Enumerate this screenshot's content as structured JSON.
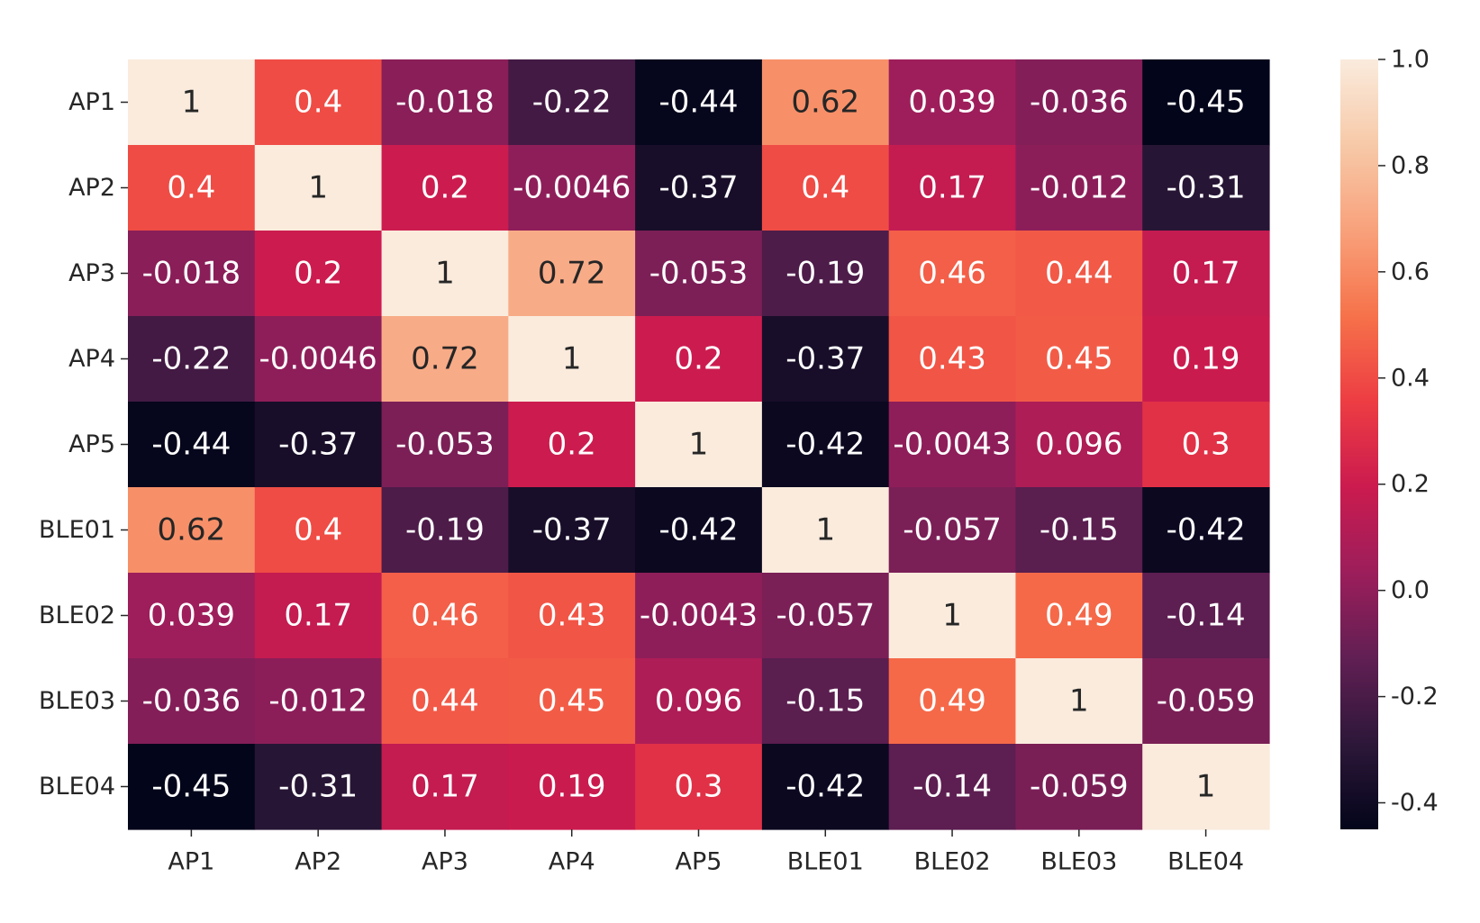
{
  "chart_data": {
    "type": "heatmap",
    "title": "",
    "xlabel": "",
    "ylabel": "",
    "x_labels": [
      "AP1",
      "AP2",
      "AP3",
      "AP4",
      "AP5",
      "BLE01",
      "BLE02",
      "BLE03",
      "BLE04"
    ],
    "y_labels": [
      "AP1",
      "AP2",
      "AP3",
      "AP4",
      "AP5",
      "BLE01",
      "BLE02",
      "BLE03",
      "BLE04"
    ],
    "values": [
      [
        1,
        0.4,
        -0.018,
        -0.22,
        -0.44,
        0.62,
        0.039,
        -0.036,
        -0.45
      ],
      [
        0.4,
        1,
        0.2,
        -0.0046,
        -0.37,
        0.4,
        0.17,
        -0.012,
        -0.31
      ],
      [
        -0.018,
        0.2,
        1,
        0.72,
        -0.053,
        -0.19,
        0.46,
        0.44,
        0.17
      ],
      [
        -0.22,
        -0.0046,
        0.72,
        1,
        0.2,
        -0.37,
        0.43,
        0.45,
        0.19
      ],
      [
        -0.44,
        -0.37,
        -0.053,
        0.2,
        1,
        -0.42,
        -0.0043,
        0.096,
        0.3
      ],
      [
        0.62,
        0.4,
        -0.19,
        -0.37,
        -0.42,
        1,
        -0.057,
        -0.15,
        -0.42
      ],
      [
        0.039,
        0.17,
        0.46,
        0.43,
        -0.0043,
        -0.057,
        1,
        0.49,
        -0.14
      ],
      [
        -0.036,
        -0.012,
        0.44,
        0.45,
        0.096,
        -0.15,
        0.49,
        1,
        -0.059
      ],
      [
        -0.45,
        -0.31,
        0.17,
        0.19,
        0.3,
        -0.42,
        -0.14,
        -0.059,
        1
      ]
    ],
    "annotations": [
      [
        "1",
        "0.4",
        "-0.018",
        "-0.22",
        "-0.44",
        "0.62",
        "0.039",
        "-0.036",
        "-0.45"
      ],
      [
        "0.4",
        "1",
        "0.2",
        "-0.0046",
        "-0.37",
        "0.4",
        "0.17",
        "-0.012",
        "-0.31"
      ],
      [
        "-0.018",
        "0.2",
        "1",
        "0.72",
        "-0.053",
        "-0.19",
        "0.46",
        "0.44",
        "0.17"
      ],
      [
        "-0.22",
        "-0.0046",
        "0.72",
        "1",
        "0.2",
        "-0.37",
        "0.43",
        "0.45",
        "0.19"
      ],
      [
        "-0.44",
        "-0.37",
        "-0.053",
        "0.2",
        "1",
        "-0.42",
        "-0.0043",
        "0.096",
        "0.3"
      ],
      [
        "0.62",
        "0.4",
        "-0.19",
        "-0.37",
        "-0.42",
        "1",
        "-0.057",
        "-0.15",
        "-0.42"
      ],
      [
        "0.039",
        "0.17",
        "0.46",
        "0.43",
        "-0.0043",
        "-0.057",
        "1",
        "0.49",
        "-0.14"
      ],
      [
        "-0.036",
        "-0.012",
        "0.44",
        "0.45",
        "0.096",
        "-0.15",
        "0.49",
        "1",
        "-0.059"
      ],
      [
        "-0.45",
        "-0.31",
        "0.17",
        "0.19",
        "0.3",
        "-0.42",
        "-0.14",
        "-0.059",
        "1"
      ]
    ],
    "colorbar": {
      "vmin": -0.45,
      "vmax": 1.0,
      "ticks": [
        -0.4,
        -0.2,
        0.0,
        0.2,
        0.4,
        0.6,
        0.8,
        1.0
      ],
      "tick_labels": [
        "-0.4",
        "-0.2",
        "0.0",
        "0.2",
        "0.4",
        "0.6",
        "0.8",
        "1.0"
      ],
      "colormap": "rocket",
      "colormap_stops": [
        "#03051a",
        "#2d1739",
        "#611f53",
        "#9c1e5b",
        "#cb1b4f",
        "#ed3d43",
        "#f6724a",
        "#f8a17b",
        "#f7c9a8",
        "#faebdd"
      ]
    },
    "text_colors": {
      "light": "#ffffff",
      "dark": "#262626"
    },
    "grid": false
  }
}
